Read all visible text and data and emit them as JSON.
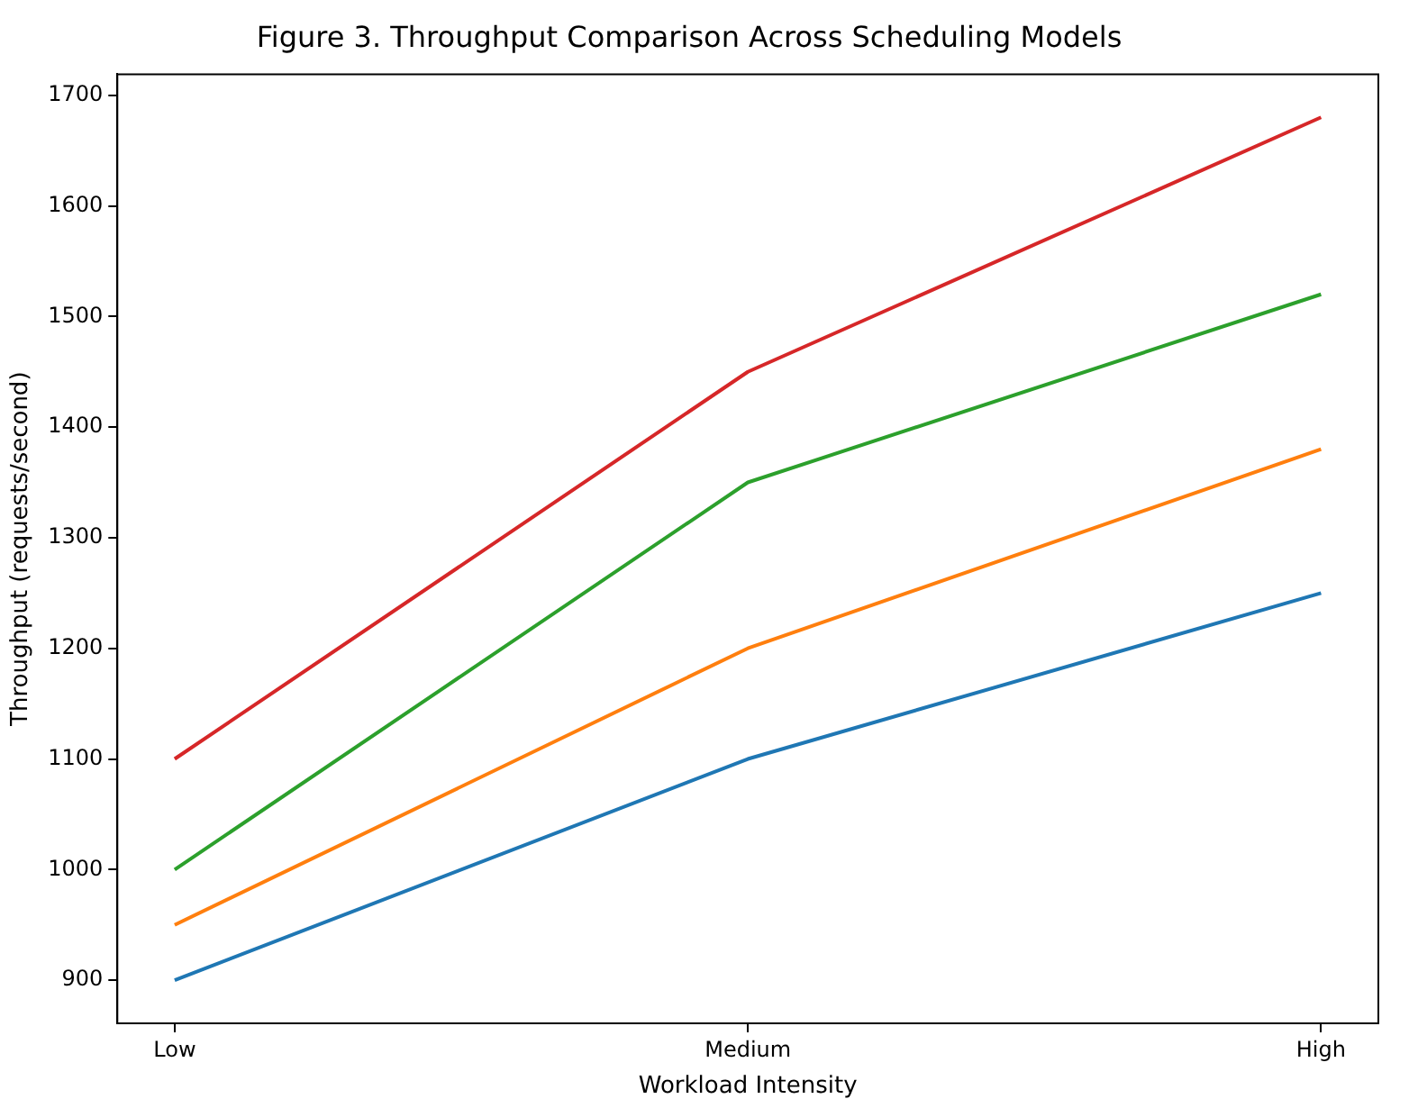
{
  "chart_data": {
    "type": "line",
    "title": "Figure 3. Throughput Comparison Across Scheduling Models",
    "xlabel": "Workload Intensity",
    "ylabel": "Throughput (requests/second)",
    "categories": [
      "Low",
      "Medium",
      "High"
    ],
    "series": [
      {
        "color": "#1f77b4",
        "values": [
          900,
          1100,
          1250
        ]
      },
      {
        "color": "#ff7f0e",
        "values": [
          950,
          1200,
          1380
        ]
      },
      {
        "color": "#2ca02c",
        "values": [
          1000,
          1350,
          1520
        ]
      },
      {
        "color": "#d62728",
        "values": [
          1100,
          1450,
          1680
        ]
      }
    ],
    "ylim": [
      861,
      1719
    ],
    "yticks": [
      900,
      1000,
      1100,
      1200,
      1300,
      1400,
      1500,
      1600,
      1700
    ],
    "grid": false,
    "legend": false,
    "marker": "none",
    "line_style": "solid"
  }
}
